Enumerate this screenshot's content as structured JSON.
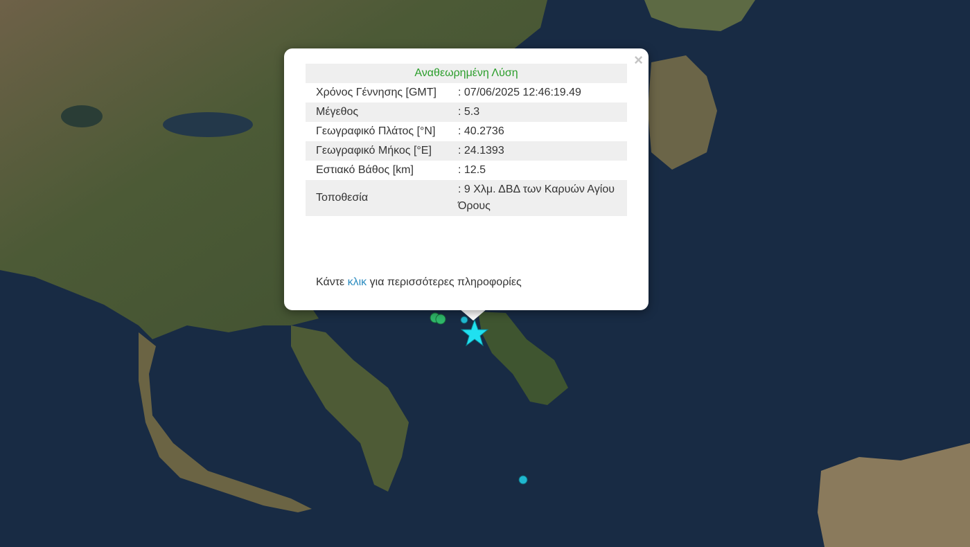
{
  "popup": {
    "title": "Αναθεωρημένη Λύση",
    "close_icon": "×",
    "rows": [
      {
        "label": "Χρόνος Γέννησης [GMT]",
        "value": ": 07/06/2025 12:46:19.49"
      },
      {
        "label": "Μέγεθος",
        "value": ": 5.3"
      },
      {
        "label": "Γεωγραφικό Πλάτος [°N]",
        "value": ": 40.2736"
      },
      {
        "label": "Γεωγραφικό Μήκος [°E]",
        "value": ": 24.1393"
      },
      {
        "label": "Εστιακό Βάθος [km]",
        "value": ": 12.5"
      },
      {
        "label": "Τοποθεσία",
        "value": ": 9 Χλμ. ΔΒΔ των Καρυών Αγίου Όρους"
      }
    ],
    "more_prefix": "Κάντε ",
    "more_link": "κλικ",
    "more_suffix": " για περισσότερες πληροφορίες"
  },
  "markers": {
    "main_event_icon": "star",
    "main_event_color": "#20e0f0",
    "other_event_color_recent": "#2fb86a",
    "other_event_color": "#1fb8d0"
  },
  "colors": {
    "sea": "#182b44",
    "land": "#4a5a38",
    "land_dry": "#7a6a50"
  }
}
